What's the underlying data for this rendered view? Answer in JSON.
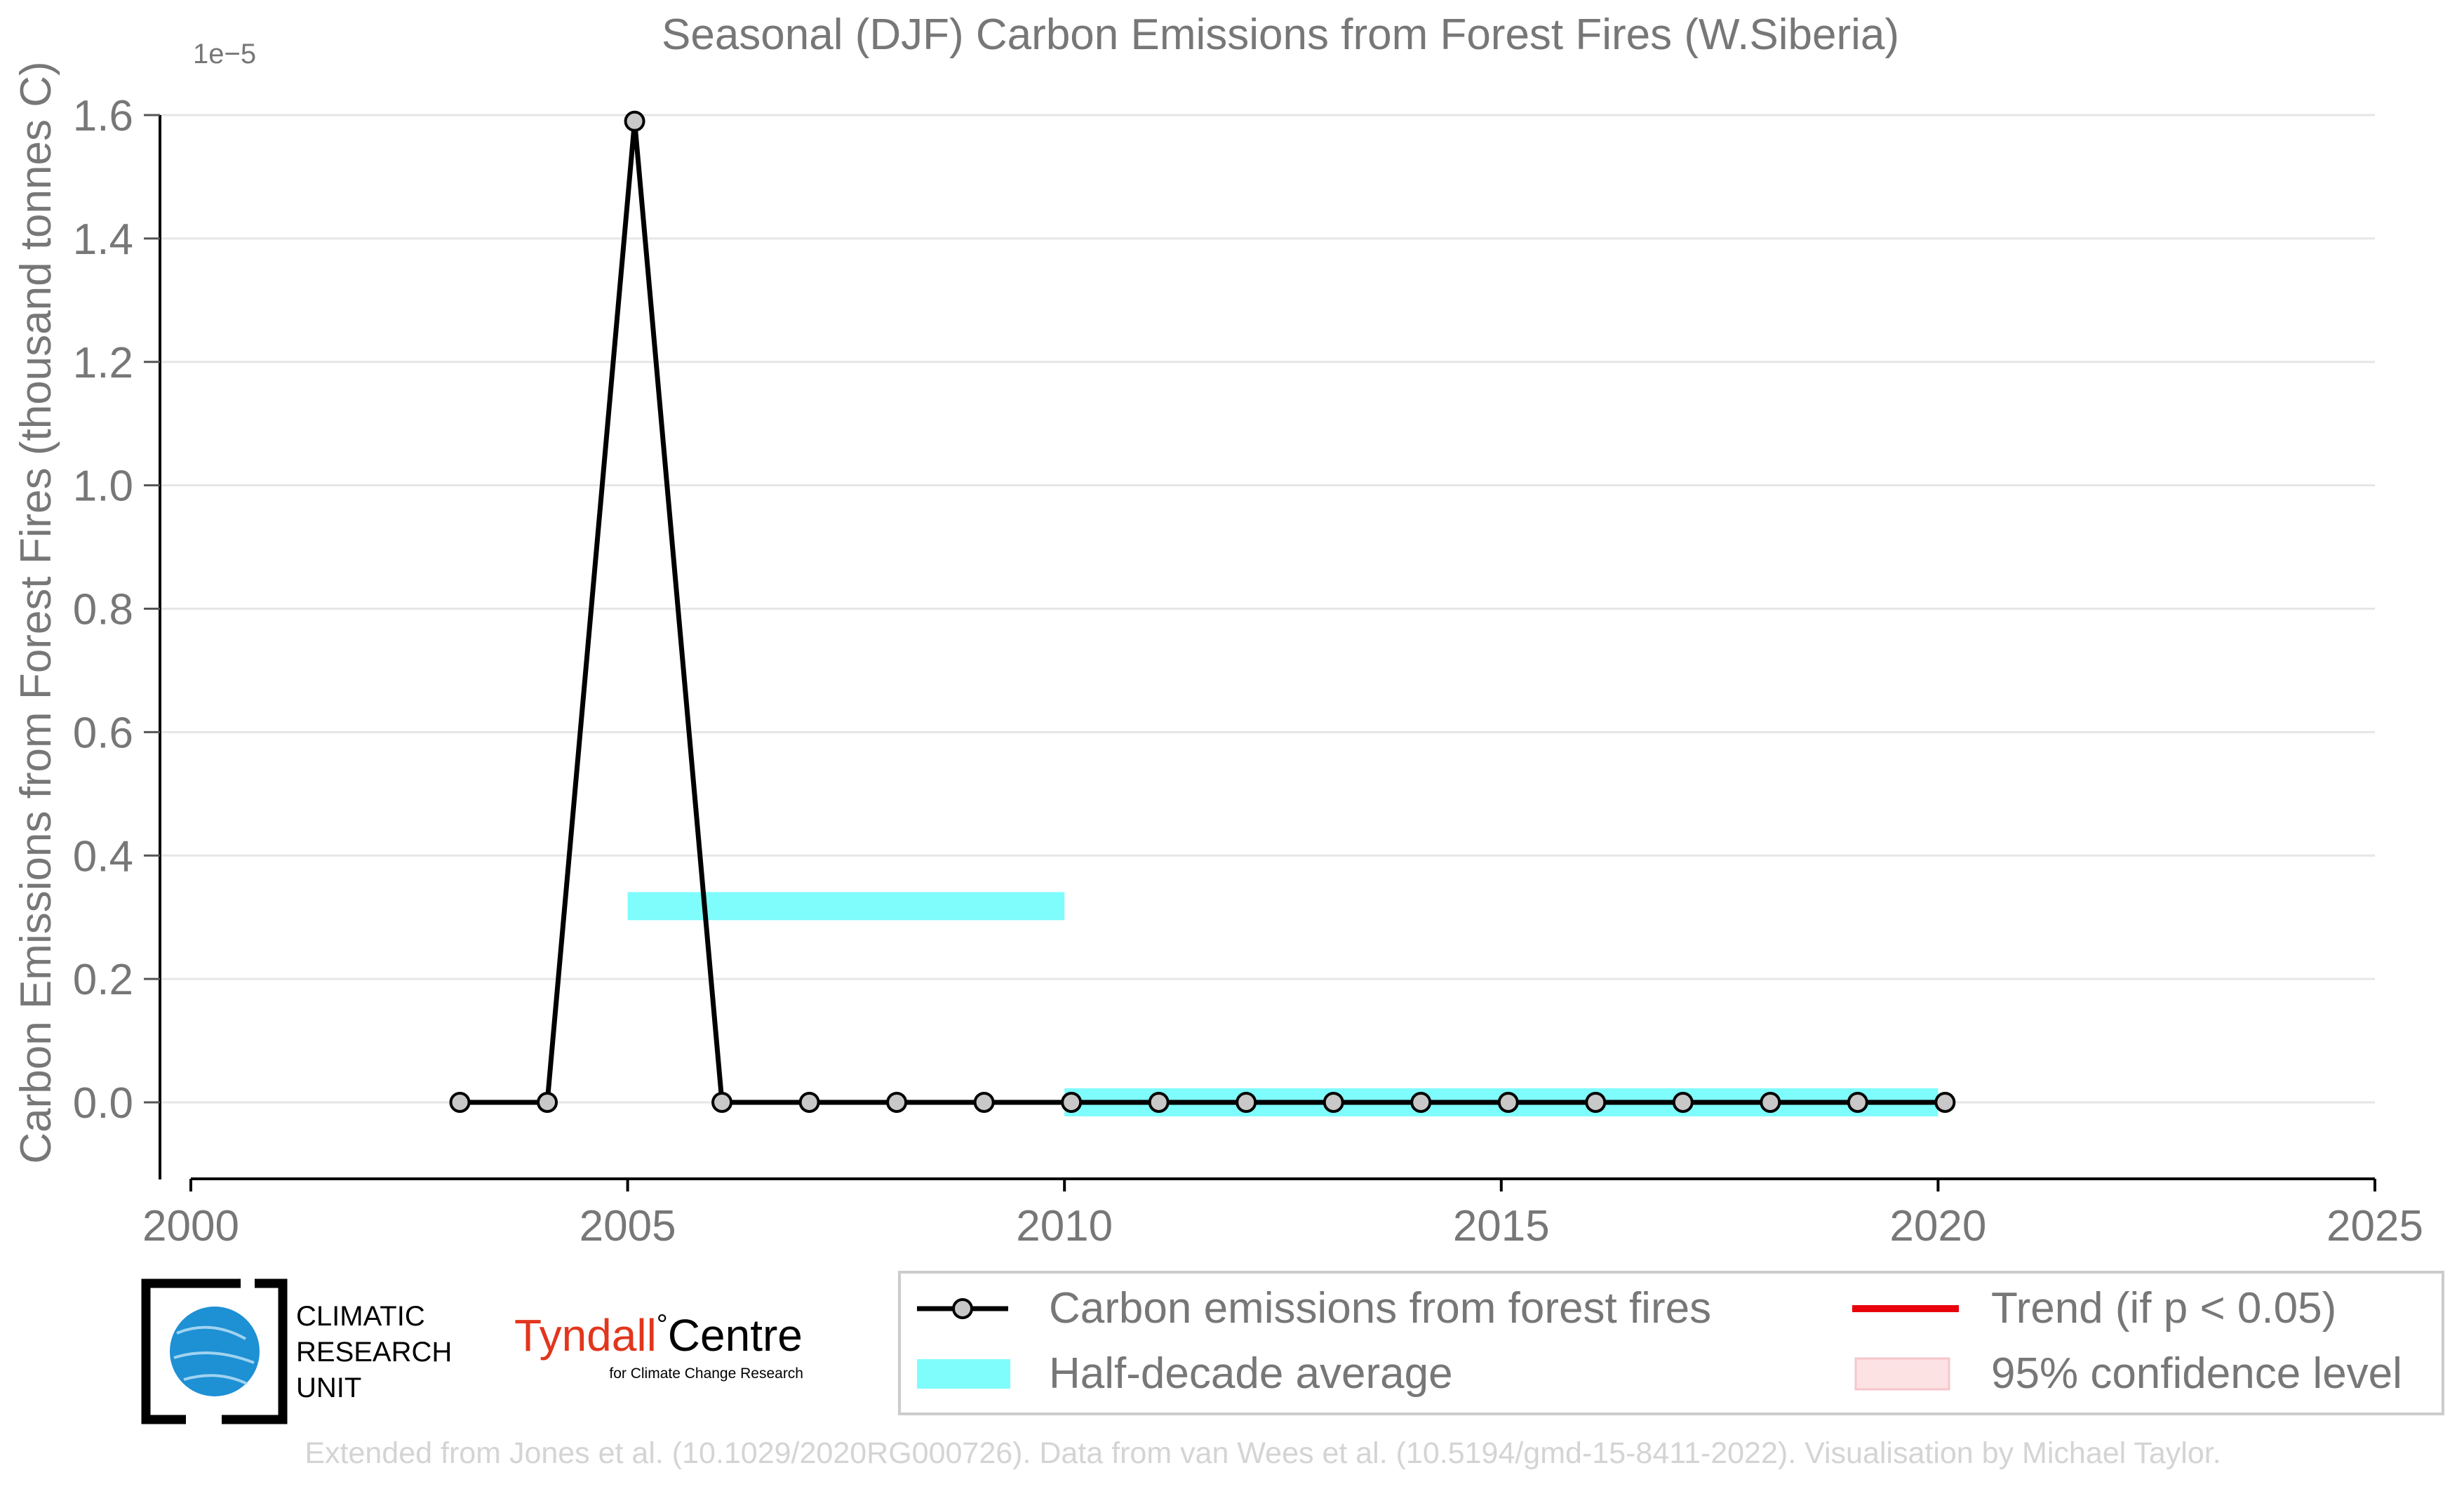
{
  "chart_data": {
    "type": "line",
    "title": "Seasonal (DJF) Carbon Emissions from Forest Fires (W.Siberia)",
    "xlabel": "",
    "ylabel": "Carbon Emissions from Forest Fires (thousand tonnes C)",
    "y_offset_label": "1e−5",
    "y_multiplier": 1e-05,
    "xlim": [
      2000,
      2025
    ],
    "ylim": [
      -0.125,
      1.65
    ],
    "x_ticks": [
      "2000",
      "2005",
      "2010",
      "2015",
      "2020",
      "2025"
    ],
    "y_ticks": [
      "0.0",
      "0.2",
      "0.4",
      "0.6",
      "0.8",
      "1.0",
      "1.2",
      "1.4",
      "1.6"
    ],
    "grid": true,
    "series": [
      {
        "name": "Carbon emissions from forest fires",
        "color": "#000000",
        "marker_fill": "#c8c8c8",
        "x": [
          2003,
          2004,
          2005,
          2006,
          2007,
          2008,
          2009,
          2010,
          2011,
          2012,
          2013,
          2014,
          2015,
          2016,
          2017,
          2018,
          2019,
          2020
        ],
        "values": [
          0,
          0,
          1.59,
          0,
          0,
          0,
          0,
          0,
          0,
          0,
          0,
          0,
          0,
          0,
          0,
          0,
          0,
          0
        ]
      }
    ],
    "half_decade_average": {
      "name": "Half-decade average",
      "color": "#7ffcfc",
      "segments": [
        {
          "x_start": 2005,
          "x_end": 2010,
          "value": 0.318
        },
        {
          "x_start": 2010,
          "x_end": 2020,
          "value": 0.0
        }
      ]
    },
    "legend": {
      "placement": "bottom-right",
      "entries": [
        {
          "label": "Carbon emissions from forest fires",
          "kind": "line-marker",
          "color": "#000000"
        },
        {
          "label": "Trend (if p < 0.05)",
          "kind": "line",
          "color": "#e8000b"
        },
        {
          "label": "Half-decade average",
          "kind": "patch",
          "color": "#7ffcfc"
        },
        {
          "label": "95% confidence level",
          "kind": "patch",
          "color": "#fde2e4"
        }
      ]
    }
  },
  "logos": {
    "cru": {
      "line1": "CLIMATIC",
      "line2": "RESEARCH",
      "line3": "UNIT"
    },
    "tyndall": {
      "name1": "Tyndall",
      "degree": "°",
      "name2": "Centre",
      "subtitle": "for Climate Change Research"
    }
  },
  "footer": {
    "credit": "Extended from Jones et al. (10.1029/2020RG000726). Data from van Wees et al. (10.5194/gmd-15-8411-2022). Visualisation by Michael Taylor."
  },
  "colors": {
    "text_gray": "#777777",
    "grid": "#e6e6e6",
    "tyndall_red": "#e2361c",
    "cru_blue": "#1e90d4",
    "credit_gray": "#d4d4d4"
  }
}
